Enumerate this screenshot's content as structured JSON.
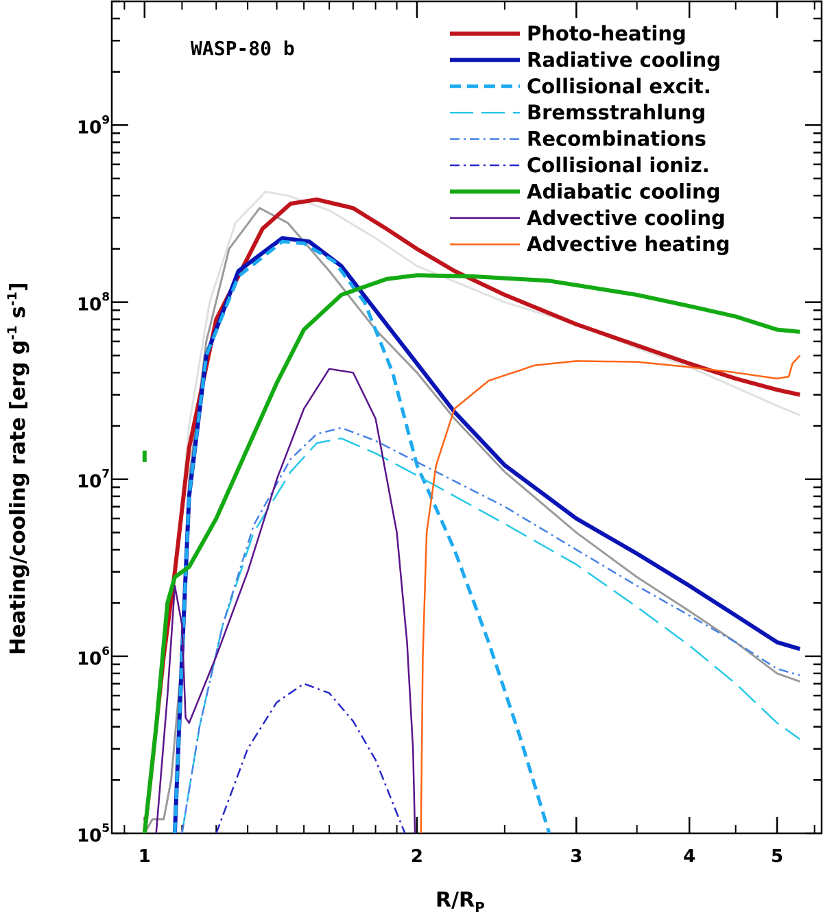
{
  "chart_data": {
    "type": "line",
    "title": "WASP-80 b",
    "xlabel": "R/R",
    "xlabel_sub": "P",
    "ylabel": "Heating/cooling rate [erg g",
    "ylabel_units": [
      "-1",
      " s",
      "-1",
      "]"
    ],
    "xscale": "log",
    "yscale": "log",
    "xlim": [
      0.92,
      5.6
    ],
    "ylim": [
      100000,
      5000000000
    ],
    "x_ticks": [
      {
        "value": 1,
        "label": "1"
      },
      {
        "value": 2,
        "label": "2"
      },
      {
        "value": 3,
        "label": "3"
      },
      {
        "value": 4,
        "label": "4"
      },
      {
        "value": 5,
        "label": "5"
      }
    ],
    "y_ticks": [
      {
        "value": 100000,
        "mant": "10",
        "exp": "5"
      },
      {
        "value": 1000000,
        "mant": "10",
        "exp": "6"
      },
      {
        "value": 10000000,
        "mant": "10",
        "exp": "7"
      },
      {
        "value": 100000000,
        "mant": "10",
        "exp": "8"
      },
      {
        "value": 1000000000,
        "mant": "10",
        "exp": "9"
      }
    ],
    "legend_position": "top-right",
    "legend": [
      {
        "name": "Photo-heating",
        "color": "#c0141c",
        "width": 6,
        "dash": ""
      },
      {
        "name": "Radiative cooling",
        "color": "#0a14b4",
        "width": 6,
        "dash": ""
      },
      {
        "name": "Collisional excit.",
        "color": "#1eaaf0",
        "width": 5,
        "dash": "16,9"
      },
      {
        "name": "Bremsstrahlung",
        "color": "#28c8e6",
        "width": 2.5,
        "dash": "34,12"
      },
      {
        "name": "Recombinations",
        "color": "#4682e6",
        "width": 2.5,
        "dash": "14,6,3,6"
      },
      {
        "name": "Collisional ioniz.",
        "color": "#2828c8",
        "width": 2.5,
        "dash": "14,6,3,6"
      },
      {
        "name": "Adiabatic cooling",
        "color": "#14aa14",
        "width": 6,
        "dash": ""
      },
      {
        "name": "Advective cooling",
        "color": "#5a148c",
        "width": 2.5,
        "dash": ""
      },
      {
        "name": "Advective heating",
        "color": "#ff6414",
        "width": 2.5,
        "dash": ""
      }
    ],
    "series": [
      {
        "name": "Total (light grey)",
        "color": "#e1e1e1",
        "width": 3,
        "dash": "",
        "points": [
          [
            1.0,
            100000
          ],
          [
            1.02,
            250000
          ],
          [
            1.05,
            1000000
          ],
          [
            1.08,
            3000000
          ],
          [
            1.12,
            20000000
          ],
          [
            1.18,
            100000000
          ],
          [
            1.26,
            280000000
          ],
          [
            1.36,
            420000000
          ],
          [
            1.44,
            400000000
          ],
          [
            1.6,
            330000000
          ],
          [
            1.8,
            230000000
          ],
          [
            2.0,
            160000000
          ],
          [
            2.5,
            100000000
          ],
          [
            3.0,
            75000000
          ],
          [
            3.5,
            55000000
          ],
          [
            4.0,
            43000000
          ],
          [
            4.5,
            33000000
          ],
          [
            5.0,
            26000000
          ],
          [
            5.3,
            23000000
          ]
        ]
      },
      {
        "name": "Total (grey)",
        "color": "#9b9b9b",
        "width": 3,
        "dash": "",
        "points": [
          [
            1.0,
            100000
          ],
          [
            1.02,
            120000
          ],
          [
            1.05,
            120000
          ],
          [
            1.07,
            200000
          ],
          [
            1.1,
            1000000
          ],
          [
            1.12,
            10000000
          ],
          [
            1.17,
            60000000
          ],
          [
            1.24,
            200000000
          ],
          [
            1.34,
            340000000
          ],
          [
            1.44,
            280000000
          ],
          [
            1.6,
            150000000
          ],
          [
            1.8,
            70000000
          ],
          [
            2.0,
            40000000
          ],
          [
            2.2,
            22000000
          ],
          [
            2.5,
            11000000
          ],
          [
            3.0,
            5000000
          ],
          [
            3.5,
            2800000
          ],
          [
            4.0,
            1800000
          ],
          [
            4.5,
            1200000
          ],
          [
            5.0,
            800000
          ],
          [
            5.3,
            720000
          ]
        ]
      },
      {
        "name": "Photo-heating",
        "color": "#c0141c",
        "width": 6,
        "dash": "",
        "points": [
          [
            1.0,
            100000
          ],
          [
            1.02,
            250000
          ],
          [
            1.05,
            1000000
          ],
          [
            1.08,
            3000000
          ],
          [
            1.12,
            15000000
          ],
          [
            1.2,
            80000000
          ],
          [
            1.35,
            260000000
          ],
          [
            1.45,
            360000000
          ],
          [
            1.55,
            380000000
          ],
          [
            1.7,
            340000000
          ],
          [
            1.85,
            260000000
          ],
          [
            2.0,
            200000000
          ],
          [
            2.2,
            150000000
          ],
          [
            2.5,
            110000000
          ],
          [
            3.0,
            75000000
          ],
          [
            3.5,
            57000000
          ],
          [
            4.0,
            45000000
          ],
          [
            4.5,
            37000000
          ],
          [
            5.0,
            32000000
          ],
          [
            5.3,
            30000000
          ]
        ]
      },
      {
        "name": "Radiative cooling",
        "color": "#0a14b4",
        "width": 6,
        "dash": "",
        "points": [
          [
            1.08,
            100000
          ],
          [
            1.1,
            1000000
          ],
          [
            1.12,
            8000000
          ],
          [
            1.17,
            50000000
          ],
          [
            1.27,
            150000000
          ],
          [
            1.42,
            230000000
          ],
          [
            1.52,
            220000000
          ],
          [
            1.65,
            160000000
          ],
          [
            1.8,
            90000000
          ],
          [
            2.0,
            45000000
          ],
          [
            2.2,
            24000000
          ],
          [
            2.5,
            12000000
          ],
          [
            3.0,
            6000000
          ],
          [
            3.5,
            3800000
          ],
          [
            4.0,
            2500000
          ],
          [
            4.5,
            1700000
          ],
          [
            5.0,
            1200000
          ],
          [
            5.3,
            1100000
          ]
        ]
      },
      {
        "name": "Collisional excit.",
        "color": "#1eaaf0",
        "width": 5,
        "dash": "16,9",
        "points": [
          [
            1.08,
            100000
          ],
          [
            1.1,
            1000000
          ],
          [
            1.12,
            8000000
          ],
          [
            1.17,
            50000000
          ],
          [
            1.27,
            140000000
          ],
          [
            1.42,
            220000000
          ],
          [
            1.5,
            215000000
          ],
          [
            1.62,
            170000000
          ],
          [
            1.75,
            100000000
          ],
          [
            1.88,
            40000000
          ],
          [
            2.0,
            12000000
          ],
          [
            2.2,
            4000000
          ],
          [
            2.4,
            1200000
          ],
          [
            2.6,
            350000
          ],
          [
            2.8,
            100000
          ]
        ]
      },
      {
        "name": "Bremsstrahlung",
        "color": "#28c8e6",
        "width": 2.5,
        "dash": "34,12",
        "points": [
          [
            1.1,
            100000
          ],
          [
            1.15,
            400000
          ],
          [
            1.22,
            1500000
          ],
          [
            1.32,
            5000000
          ],
          [
            1.45,
            11000000
          ],
          [
            1.55,
            16000000
          ],
          [
            1.65,
            17000000
          ],
          [
            1.8,
            14000000
          ],
          [
            2.0,
            10500000
          ],
          [
            2.5,
            5600000
          ],
          [
            3.0,
            3300000
          ],
          [
            3.5,
            1900000
          ],
          [
            4.0,
            1150000
          ],
          [
            4.5,
            700000
          ],
          [
            5.0,
            420000
          ],
          [
            5.3,
            340000
          ]
        ]
      },
      {
        "name": "Recombinations",
        "color": "#4682e6",
        "width": 2.5,
        "dash": "14,6,3,6",
        "points": [
          [
            1.1,
            100000
          ],
          [
            1.15,
            400000
          ],
          [
            1.22,
            1500000
          ],
          [
            1.32,
            5500000
          ],
          [
            1.45,
            13000000
          ],
          [
            1.55,
            18000000
          ],
          [
            1.65,
            19500000
          ],
          [
            1.8,
            16500000
          ],
          [
            2.0,
            12500000
          ],
          [
            2.5,
            7000000
          ],
          [
            3.0,
            4000000
          ],
          [
            3.5,
            2500000
          ],
          [
            4.0,
            1700000
          ],
          [
            4.5,
            1200000
          ],
          [
            5.0,
            850000
          ],
          [
            5.3,
            780000
          ]
        ]
      },
      {
        "name": "Collisional ioniz.",
        "color": "#2828c8",
        "width": 2.5,
        "dash": "14,6,3,6",
        "points": [
          [
            1.2,
            100000
          ],
          [
            1.3,
            300000
          ],
          [
            1.4,
            550000
          ],
          [
            1.5,
            700000
          ],
          [
            1.6,
            620000
          ],
          [
            1.7,
            430000
          ],
          [
            1.8,
            260000
          ],
          [
            1.9,
            130000
          ],
          [
            1.94,
            100000
          ]
        ]
      },
      {
        "name": "Adiabatic cooling",
        "color": "#14aa14",
        "width": 6,
        "dash": "",
        "points": [
          [
            1.0,
            100000
          ],
          [
            1.03,
            400000
          ],
          [
            1.06,
            2000000
          ],
          [
            1.08,
            2800000
          ],
          [
            1.12,
            3200000
          ],
          [
            1.2,
            6000000
          ],
          [
            1.3,
            15000000
          ],
          [
            1.4,
            35000000
          ],
          [
            1.5,
            70000000
          ],
          [
            1.65,
            110000000
          ],
          [
            1.85,
            135000000
          ],
          [
            2.0,
            142000000
          ],
          [
            2.3,
            140000000
          ],
          [
            2.8,
            132000000
          ],
          [
            3.5,
            110000000
          ],
          [
            4.0,
            95000000
          ],
          [
            4.5,
            83000000
          ],
          [
            5.0,
            70000000
          ],
          [
            5.3,
            68000000
          ]
        ]
      },
      {
        "name": "Advective cooling",
        "color": "#5a148c",
        "width": 2.5,
        "dash": "",
        "points": [
          [
            1.03,
            100000
          ],
          [
            1.06,
            600000
          ],
          [
            1.08,
            2500000
          ],
          [
            1.1,
            1500000
          ],
          [
            1.11,
            450000
          ],
          [
            1.12,
            420000
          ],
          [
            1.2,
            1000000
          ],
          [
            1.3,
            3000000
          ],
          [
            1.4,
            10000000
          ],
          [
            1.5,
            25000000
          ],
          [
            1.6,
            42000000
          ],
          [
            1.7,
            40000000
          ],
          [
            1.8,
            22000000
          ],
          [
            1.9,
            5000000
          ],
          [
            1.95,
            1200000
          ],
          [
            1.98,
            300000
          ],
          [
            1.99,
            100000
          ]
        ]
      },
      {
        "name": "Advective heating",
        "color": "#ff6414",
        "width": 2.5,
        "dash": "",
        "points": [
          [
            2.02,
            100000
          ],
          [
            2.03,
            1000000
          ],
          [
            2.05,
            5000000
          ],
          [
            2.1,
            12000000
          ],
          [
            2.2,
            25000000
          ],
          [
            2.4,
            36000000
          ],
          [
            2.7,
            44000000
          ],
          [
            3.0,
            46500000
          ],
          [
            3.5,
            46000000
          ],
          [
            4.0,
            43000000
          ],
          [
            4.5,
            40000000
          ],
          [
            5.0,
            37000000
          ],
          [
            5.15,
            38000000
          ],
          [
            5.2,
            45000000
          ],
          [
            5.3,
            50000000
          ]
        ]
      },
      {
        "name": "Adiabatic cooling (inner tick)",
        "color": "#14aa14",
        "width": 6,
        "dash": "",
        "points": [
          [
            1.0,
            12500000
          ],
          [
            1.0,
            14500000
          ]
        ]
      }
    ]
  }
}
